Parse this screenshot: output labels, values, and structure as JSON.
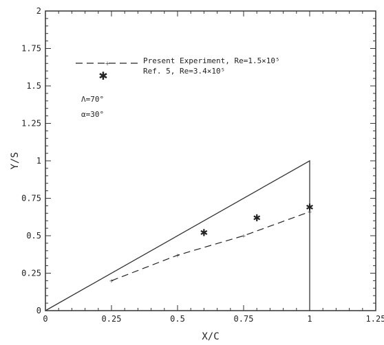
{
  "chart_data": {
    "type": "line",
    "xlabel": "X/C",
    "ylabel": "Y/S",
    "xlim": [
      0,
      1.25
    ],
    "ylim": [
      0,
      2
    ],
    "xticks": [
      "0",
      "0.25",
      "0.5",
      "0.75",
      "1",
      "1.25"
    ],
    "yticks": [
      "0",
      "0.25",
      "0.5",
      "0.75",
      "1",
      "1.25",
      "1.5",
      "1.75",
      "2"
    ],
    "grid": false,
    "legend_position": "top-left",
    "legend": [
      "Present Experiment, Re=1.5×10⁵",
      "Ref. 5, Re=3.4×10⁵"
    ],
    "annotations": [
      "Λ=70°",
      "α=30°"
    ],
    "wing_outline": {
      "x": [
        0,
        1,
        1
      ],
      "y": [
        0,
        1,
        0
      ]
    },
    "series": [
      {
        "name": "Present Experiment, Re=1.5×10⁵",
        "style": "dashed-with-markers",
        "x": [
          0.25,
          0.5,
          0.75,
          1.0
        ],
        "y": [
          0.2,
          0.37,
          0.5,
          0.66
        ]
      },
      {
        "name": "Ref. 5, Re=3.4×10⁵",
        "style": "star-markers",
        "x": [
          0.6,
          0.8,
          1.0
        ],
        "y": [
          0.52,
          0.62,
          0.69
        ]
      }
    ]
  }
}
